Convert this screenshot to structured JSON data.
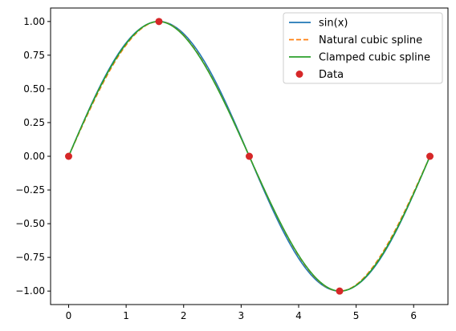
{
  "chart_data": {
    "type": "line",
    "title": "",
    "xlabel": "",
    "ylabel": "",
    "xlim": [
      -0.314,
      6.597
    ],
    "ylim": [
      -1.1,
      1.1
    ],
    "xticks": [
      0,
      1,
      2,
      3,
      4,
      5,
      6
    ],
    "yticks": [
      -1.0,
      -0.75,
      -0.5,
      -0.25,
      0.0,
      0.25,
      0.5,
      0.75,
      1.0
    ],
    "x_tick_labels": [
      "0",
      "1",
      "2",
      "3",
      "4",
      "5",
      "6"
    ],
    "y_tick_labels": [
      "−1.00",
      "−0.75",
      "−0.50",
      "−0.25",
      "0.00",
      "0.25",
      "0.50",
      "0.75",
      "1.00"
    ],
    "grid": false,
    "legend_position": "top-right",
    "data_points": {
      "name": "Data",
      "x": [
        0,
        1.5708,
        3.1416,
        4.7124,
        6.2832
      ],
      "y": [
        0,
        1,
        0,
        -1,
        0
      ],
      "color": "#d62728"
    },
    "series": [
      {
        "name": "sin(x)",
        "color": "#1f77b4",
        "style": "solid",
        "function": "sin"
      },
      {
        "name": "Natural cubic spline",
        "color": "#ff7f0e",
        "style": "dashed",
        "function": "natural"
      },
      {
        "name": "Clamped cubic spline",
        "color": "#2ca02c",
        "style": "solid",
        "function": "clamped"
      }
    ],
    "legend": [
      "sin(x)",
      "Natural cubic spline",
      "Clamped cubic spline",
      "Data"
    ]
  }
}
